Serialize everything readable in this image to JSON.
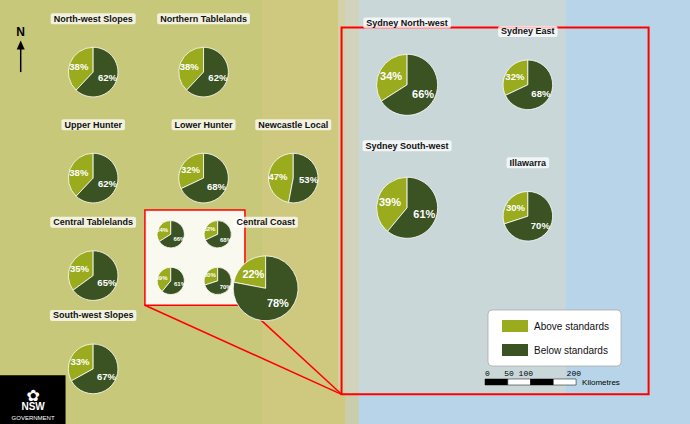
{
  "chart_data": [
    {
      "type": "pie",
      "title": "North-west Slopes",
      "categories": [
        "Above standards",
        "Below standards"
      ],
      "values": [
        38,
        62
      ],
      "value_labels": [
        "38%",
        "62%"
      ],
      "colors": [
        "#9aac1e",
        "#3b5323"
      ],
      "data_labels": true,
      "legend": "lower right",
      "annotations": [
        "N",
        "0   50 100       200",
        "Kilometres",
        "NSW",
        "GOVERNMENT",
        "✿"
      ]
    },
    {
      "type": "pie",
      "title": "Northern Tablelands",
      "categories": [
        "Above standards",
        "Below standards"
      ],
      "values": [
        38,
        62
      ],
      "value_labels": [
        "38%",
        "62%"
      ],
      "colors": [
        "#9aac1e",
        "#3b5323"
      ],
      "data_labels": true
    },
    {
      "type": "pie",
      "title": "Upper Hunter",
      "categories": [
        "Above standards",
        "Below standards"
      ],
      "values": [
        38,
        62
      ],
      "value_labels": [
        "38%",
        "62%"
      ],
      "colors": [
        "#9aac1e",
        "#3b5323"
      ],
      "data_labels": true
    },
    {
      "type": "pie",
      "title": "Lower Hunter",
      "categories": [
        "Above standards",
        "Below standards"
      ],
      "values": [
        32,
        68
      ],
      "value_labels": [
        "32%",
        "68%"
      ],
      "colors": [
        "#9aac1e",
        "#3b5323"
      ],
      "data_labels": true
    },
    {
      "type": "pie",
      "title": "Newcastle Local",
      "categories": [
        "Above standards",
        "Below standards"
      ],
      "values": [
        47,
        53
      ],
      "value_labels": [
        "47%",
        "53%"
      ],
      "colors": [
        "#9aac1e",
        "#3b5323"
      ],
      "data_labels": true
    },
    {
      "type": "pie",
      "title": "Central Tablelands",
      "categories": [
        "Above standards",
        "Below standards"
      ],
      "values": [
        35,
        65
      ],
      "value_labels": [
        "35%",
        "65%"
      ],
      "colors": [
        "#9aac1e",
        "#3b5323"
      ],
      "data_labels": true
    },
    {
      "type": "pie",
      "title": "Central Coast",
      "categories": [
        "Above standards",
        "Below standards"
      ],
      "values": [
        22,
        78
      ],
      "value_labels": [
        "22%",
        "78%"
      ],
      "colors": [
        "#9aac1e",
        "#3b5323"
      ],
      "data_labels": true
    },
    {
      "type": "pie",
      "title": "South-west Slopes",
      "categories": [
        "Above standards",
        "Below standards"
      ],
      "values": [
        33,
        67
      ],
      "value_labels": [
        "33%",
        "67%"
      ],
      "colors": [
        "#9aac1e",
        "#3b5323"
      ],
      "data_labels": true
    },
    {
      "type": "pie",
      "title": "Sydney North-west",
      "categories": [
        "Above standards",
        "Below standards"
      ],
      "values": [
        34,
        66
      ],
      "value_labels": [
        "34%",
        "66%"
      ],
      "colors": [
        "#9aac1e",
        "#3b5323"
      ],
      "data_labels": true
    },
    {
      "type": "pie",
      "title": "Sydney East",
      "categories": [
        "Above standards",
        "Below standards"
      ],
      "values": [
        32,
        68
      ],
      "value_labels": [
        "32%",
        "68%"
      ],
      "colors": [
        "#9aac1e",
        "#3b5323"
      ],
      "data_labels": true
    },
    {
      "type": "pie",
      "title": "Sydney South-west",
      "categories": [
        "Above standards",
        "Below standards"
      ],
      "values": [
        39,
        61
      ],
      "value_labels": [
        "39%",
        "61%"
      ],
      "colors": [
        "#9aac1e",
        "#3b5323"
      ],
      "data_labels": true
    },
    {
      "type": "pie",
      "title": "Illawarra",
      "categories": [
        "Above standards",
        "Below standards"
      ],
      "values": [
        30,
        70
      ],
      "value_labels": [
        "30%",
        "70%"
      ],
      "colors": [
        "#9aac1e",
        "#3b5323"
      ],
      "data_labels": true
    },
    {
      "type": "pie",
      "categories": [
        "Above standards",
        "Below standards"
      ],
      "values": [
        34,
        66
      ],
      "value_labels": [
        "34%",
        "66%"
      ],
      "colors": [
        "#9aac1e",
        "#3b5323"
      ],
      "data_labels": true
    },
    {
      "type": "pie",
      "categories": [
        "Above standards",
        "Below standards"
      ],
      "values": [
        32,
        68
      ],
      "value_labels": [
        "32%",
        "68%"
      ],
      "colors": [
        "#9aac1e",
        "#3b5323"
      ],
      "data_labels": true
    },
    {
      "type": "pie",
      "categories": [
        "Above standards",
        "Below standards"
      ],
      "values": [
        39,
        61
      ],
      "value_labels": [
        "39%",
        "61%"
      ],
      "colors": [
        "#9aac1e",
        "#3b5323"
      ],
      "data_labels": true
    },
    {
      "type": "pie",
      "categories": [
        "Above standards",
        "Below standards"
      ],
      "values": [
        30,
        70
      ],
      "value_labels": [
        "30%",
        "70%"
      ],
      "colors": [
        "#9aac1e",
        "#3b5323"
      ],
      "data_labels": true
    }
  ]
}
